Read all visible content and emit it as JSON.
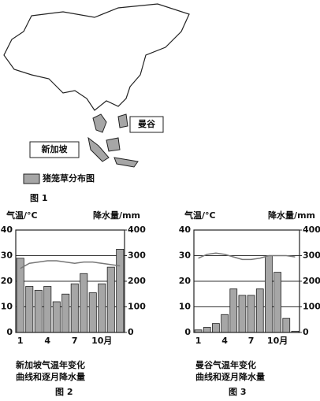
{
  "map": {
    "labels": [
      "曼谷",
      "新加坡"
    ],
    "legend": "猪笼草分布图",
    "caption": "图 1"
  },
  "chart_data": [
    {
      "type": "combo",
      "title": [
        "新加坡气温年变化",
        "曲线和逐月降水量"
      ],
      "caption": "图 2",
      "ylabel": "气温/°C",
      "y2label": "降水量/mm",
      "categories": [
        "1",
        null,
        null,
        "4",
        null,
        null,
        "7",
        null,
        null,
        "10月",
        null,
        null
      ],
      "ylim": [
        0,
        40
      ],
      "yticks": [
        0,
        10,
        20,
        30,
        40
      ],
      "y2lim": [
        0,
        400
      ],
      "y2ticks": [
        0,
        100,
        200,
        300,
        400
      ],
      "grid": true,
      "series": [
        {
          "type": "bar",
          "axis": "y2",
          "color": "#a6a6a6",
          "values": [
            290,
            180,
            165,
            180,
            120,
            150,
            190,
            230,
            155,
            190,
            255,
            325
          ]
        },
        {
          "type": "line",
          "color": "#777777",
          "values": [
            25,
            27,
            27.5,
            28,
            28,
            27.5,
            27,
            27.5,
            27.5,
            27,
            26.5,
            26
          ]
        }
      ]
    },
    {
      "type": "combo",
      "title": [
        "曼谷气温年变化",
        "曲线和逐月降水量"
      ],
      "caption": "图 3",
      "ylabel": "气温/°C",
      "y2label": "降水量/mm",
      "categories": [
        "1",
        null,
        null,
        "4",
        null,
        null,
        "7",
        null,
        null,
        "10月",
        null,
        null
      ],
      "ylim": [
        0,
        40
      ],
      "yticks": [
        0,
        10,
        20,
        30,
        40
      ],
      "y2lim": [
        0,
        400
      ],
      "y2ticks": [
        0,
        100,
        200,
        300,
        400
      ],
      "grid": true,
      "series": [
        {
          "type": "bar",
          "axis": "y2",
          "color": "#a6a6a6",
          "values": [
            10,
            20,
            35,
            70,
            170,
            145,
            145,
            170,
            300,
            235,
            55,
            5
          ]
        },
        {
          "type": "line",
          "color": "#777777",
          "values": [
            29,
            30.5,
            31,
            30.5,
            29.5,
            28.5,
            28.5,
            29,
            30,
            30,
            30,
            29.5
          ]
        }
      ]
    }
  ]
}
